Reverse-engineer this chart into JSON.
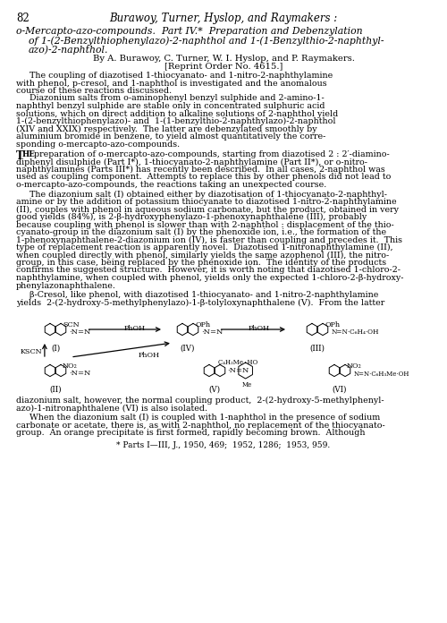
{
  "page_number": "82",
  "header_italic": "Burawoy, Turner, Hyslop, and Raymakers :",
  "title_line1": "o-Mercapto-azo-compounds.  Part IV.*  Preparation and Debenzylation",
  "title_line2": "of 1-(2-Benzylthiophenylazo)-2-naphthol and 1-(1-Benzylthio-2-naphthyl-",
  "title_line3": "azo)-2-naphthol.",
  "authors": "By A. Burawoy, C. Turner, W. I. Hyslop, and P. Raymakers.",
  "reprint": "[Reprint Order No. 4615.]",
  "body_text": [
    "     The coupling of diazotised 1-thiocyanato- and 1-nitro-2-naphthylamine",
    "with phenol, p-cresol, and 1-naphthol is investigated and the anomalous",
    "course of these reactions discussed.",
    "     Diazonium salts from o-aminophenyl benzyl sulphide and 2-amino-1-",
    "naphthyl benzyl sulphide are stable only in concentrated sulphuric acid",
    "solutions, which on direct addition to alkaline solutions of 2-naphthol yield",
    "1-(2-benzylthiophenylazo)- and  1-(1-benzylthio-2-naphthylazo)-2-naphthol",
    "(XIV and XXIX) respectively.  The latter are debenzylated smoothly by",
    "aluminium bromide in benzene, to yield almost quantitatively the corre-",
    "sponding o-mercapto-azo-compounds."
  ],
  "paragraph1_first": "The preparation of o-mercapto-azo-compounds, starting from diazotised 2 : 2′-diamino-",
  "paragraph1_rest": [
    "diphenyl disulphide (Part I*), 1-thiocyanato-2-naphthylamine (Part II*), or o-nitro-",
    "naphthylamines (Parts III*) has recently been described.  In all cases, 2-naphthol was",
    "used as coupling component.  Attempts to replace this by other phenols did not lead to",
    "o-mercapto-azo-compounds, the reactions taking an unexpected course."
  ],
  "paragraph2": [
    "     The diazonium salt (I) obtained either by diazotisation of 1-thiocyanato-2-naphthyl-",
    "amine or by the addition of potassium thiocyanate to diazotised 1-nitro-2-naphthylamine",
    "(II), couples with phenol in aqueous sodium carbonate, but the product, obtained in very",
    "good yields (84%), is 2-β-hydroxyphenylazo-1-phenoxynaphthalene (III), probably",
    "because coupling with phenol is slower than with 2-naphthol : displacement of the thio-",
    "cyanato-group in the diazonium salt (I) by the phenoxide ion, i.e., the formation of the",
    "1-phenoxynaphthalene-2-diazonium ion (IV), is faster than coupling and precedes it.  This",
    "type of replacement reaction is apparently novel.  Diazotised 1-nitronaphthylamine (II),",
    "when coupled directly with phenol, similarly yields the same azophenol (III), the nitro-",
    "group, in this case, being replaced by the phenoxide ion.  The identity of the products",
    "confirms the suggested structure.  However, it is worth noting that diazotised 1-chloro-2-",
    "naphthylamine, when coupled with phenol, yields only the expected 1-chloro-2-β-hydroxy-",
    "phenylazonaphthalene."
  ],
  "paragraph3_line1": "     β-Cresol, like phenol, with diazotised 1-thiocyanato- and 1-nitro-2-naphthylamine",
  "paragraph3_line2": "yields  2-(2-hydroxy-5-methylphenylazo)-1-β-tolyloxynaphthalene (V).  From the latter",
  "paragraph4_line1": "diazonium salt, however, the normal coupling product,  2-(2-hydroxy-5-methylphenyl-",
  "paragraph4_line2": "azo)-1-nitronaphthalene (VI) is also isolated.",
  "paragraph5": [
    "     When the diazonium salt (I) is coupled with 1-naphthol in the presence of sodium",
    "carbonate or acetate, there is, as with 2-naphthol, no replacement of the thiocyanato-",
    "group.  An orange precipitate is first formed, rapidly becoming brown.  Although"
  ],
  "footnote": "* Parts I—III, J., 1950, 469;  1952, 1286;  1953, 959.",
  "background_color": "#ffffff",
  "text_color": "#000000"
}
